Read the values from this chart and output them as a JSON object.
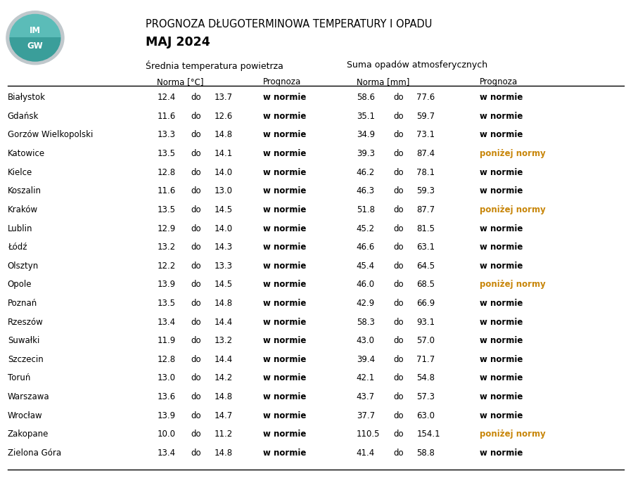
{
  "title_line1": "PROGNOZA DŁUGOTERMINOWA TEMPERATURY I OPADU",
  "title_line2": "MAJ 2024",
  "header_temp": "Średnia temperatura powietrza",
  "header_precip": "Suma opadów atmosferycznych",
  "subheader_norma_temp": "Norma [°C]",
  "subheader_prognoza": "Prognoza",
  "subheader_norma_precip": "Norma [mm]",
  "subheader_prognoza2": "Prognoza",
  "cities": [
    "Białystok",
    "Gdańsk",
    "Gorzów Wielkopolski",
    "Katowice",
    "Kielce",
    "Koszalin",
    "Kraków",
    "Lublin",
    "Łódź",
    "Olsztyn",
    "Opole",
    "Poznań",
    "Rzeszów",
    "Suwałki",
    "Szczecin",
    "Toruń",
    "Warszawa",
    "Wrocław",
    "Zakopane",
    "Zielona Góra"
  ],
  "temp_low": [
    12.4,
    11.6,
    13.3,
    13.5,
    12.8,
    11.6,
    13.5,
    12.9,
    13.2,
    12.2,
    13.9,
    13.5,
    13.4,
    11.9,
    12.8,
    13.0,
    13.6,
    13.9,
    10.0,
    13.4
  ],
  "temp_high": [
    13.7,
    12.6,
    14.8,
    14.1,
    14.0,
    13.0,
    14.5,
    14.0,
    14.3,
    13.3,
    14.5,
    14.8,
    14.4,
    13.2,
    14.4,
    14.2,
    14.8,
    14.7,
    11.2,
    14.8
  ],
  "temp_prognoza": [
    "w normie",
    "w normie",
    "w normie",
    "w normie",
    "w normie",
    "w normie",
    "w normie",
    "w normie",
    "w normie",
    "w normie",
    "w normie",
    "w normie",
    "w normie",
    "w normie",
    "w normie",
    "w normie",
    "w normie",
    "w normie",
    "w normie",
    "w normie"
  ],
  "precip_low": [
    58.6,
    35.1,
    34.9,
    39.3,
    46.2,
    46.3,
    51.8,
    45.2,
    46.6,
    45.4,
    46.0,
    42.9,
    58.3,
    43.0,
    39.4,
    42.1,
    43.7,
    37.7,
    110.5,
    41.4
  ],
  "precip_high": [
    77.6,
    59.7,
    73.1,
    87.4,
    78.1,
    59.3,
    87.7,
    81.5,
    63.1,
    64.5,
    68.5,
    66.9,
    93.1,
    57.0,
    71.7,
    54.8,
    57.3,
    63.0,
    154.1,
    58.8
  ],
  "precip_prognoza": [
    "w normie",
    "w normie",
    "w normie",
    "poniżej normy",
    "w normie",
    "w normie",
    "poniżej normy",
    "w normie",
    "w normie",
    "w normie",
    "poniżej normy",
    "w normie",
    "w normie",
    "w normie",
    "w normie",
    "w normie",
    "w normie",
    "w normie",
    "poniżej normy",
    "w normie"
  ],
  "color_normie": "#000000",
  "color_ponizej": "#C8860A",
  "bg_color": "#FFFFFF",
  "col_city": 0.012,
  "col_t1": 0.248,
  "col_tdo": 0.302,
  "col_t2": 0.338,
  "col_tp": 0.415,
  "col_p1": 0.563,
  "col_pdo": 0.622,
  "col_p2": 0.658,
  "col_pp": 0.758
}
